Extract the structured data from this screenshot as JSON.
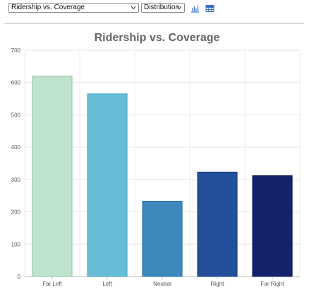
{
  "toolbar": {
    "metric_select": "Ridership vs. Coverage",
    "view_select": "Distribution",
    "icons": [
      "bar-chart-icon",
      "table-icon"
    ],
    "icon_color": "#3a6fc4"
  },
  "chart_data": {
    "type": "bar",
    "title": "Ridership vs. Coverage",
    "xlabel": "",
    "ylabel": "",
    "categories": [
      "Far Left",
      "Left",
      "Neutral",
      "Right",
      "Far Right"
    ],
    "values": [
      620,
      565,
      233,
      323,
      312
    ],
    "colors": [
      "#bfe2cd",
      "#67bcd6",
      "#3d88bd",
      "#234f9a",
      "#13226a"
    ],
    "border_colors": [
      "#8ec9a8",
      "#4aa3c2",
      "#2d72a8",
      "#1a3f85",
      "#0c1a55"
    ],
    "ylim": [
      0,
      700
    ],
    "yticks": [
      0,
      100,
      200,
      300,
      400,
      500,
      600,
      700
    ],
    "grid": true,
    "legend": "none"
  }
}
